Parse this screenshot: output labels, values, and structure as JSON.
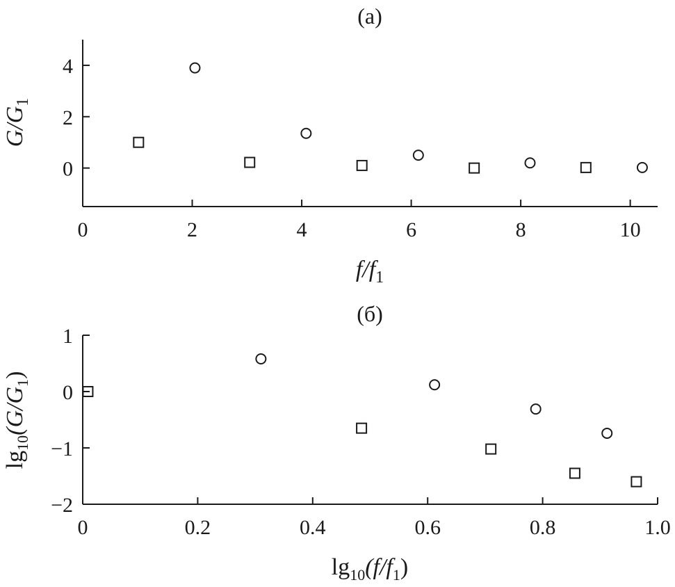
{
  "chart_data": [
    {
      "type": "scatter",
      "title": "(a)",
      "xlabel": {
        "base": "f/f",
        "sub": "1"
      },
      "ylabel": {
        "base": "G/G",
        "sub": "1"
      },
      "xlim": [
        0,
        10.5
      ],
      "ylim": [
        -1.5,
        5
      ],
      "xticks": [
        0,
        2,
        4,
        6,
        8,
        10
      ],
      "xtick_labels": [
        "0",
        "2",
        "4",
        "6",
        "8",
        "10"
      ],
      "yticks": [
        0,
        2,
        4
      ],
      "ytick_labels": [
        "0",
        "2",
        "4"
      ],
      "grid": false,
      "series": [
        {
          "marker": "circle",
          "x": [
            2.05,
            4.08,
            6.13,
            8.17,
            10.22
          ],
          "y": [
            3.9,
            1.35,
            0.5,
            0.2,
            0.02
          ]
        },
        {
          "marker": "square",
          "x": [
            1.02,
            3.05,
            5.1,
            7.15,
            9.19
          ],
          "y": [
            1.0,
            0.22,
            0.1,
            0.0,
            0.02
          ]
        }
      ]
    },
    {
      "type": "scatter",
      "title": "(б)",
      "xlabel": {
        "pre": "lg",
        "presub": "10",
        "base": "(f/f",
        "sub": "1",
        "post": ")"
      },
      "ylabel": {
        "pre": "lg",
        "presub": "10",
        "base": "(G/G",
        "sub": "1",
        "post": ")"
      },
      "xlim": [
        0,
        1.0
      ],
      "ylim": [
        -2,
        1
      ],
      "xticks": [
        0,
        0.2,
        0.4,
        0.6,
        0.8,
        1.0
      ],
      "xtick_labels": [
        "0",
        "0.2",
        "0.4",
        "0.6",
        "0.8",
        "1.0"
      ],
      "yticks": [
        -2,
        -1,
        0,
        1
      ],
      "ytick_labels": [
        "−2",
        "−1",
        "0",
        "1"
      ],
      "grid": false,
      "series": [
        {
          "marker": "circle",
          "x": [
            0.31,
            0.612,
            0.788,
            0.912
          ],
          "y": [
            0.58,
            0.12,
            -0.31,
            -0.74
          ]
        },
        {
          "marker": "square",
          "x": [
            0.009,
            0.485,
            0.71,
            0.856,
            0.963
          ],
          "y": [
            0.0,
            -0.65,
            -1.02,
            -1.45,
            -1.6
          ]
        }
      ]
    }
  ]
}
